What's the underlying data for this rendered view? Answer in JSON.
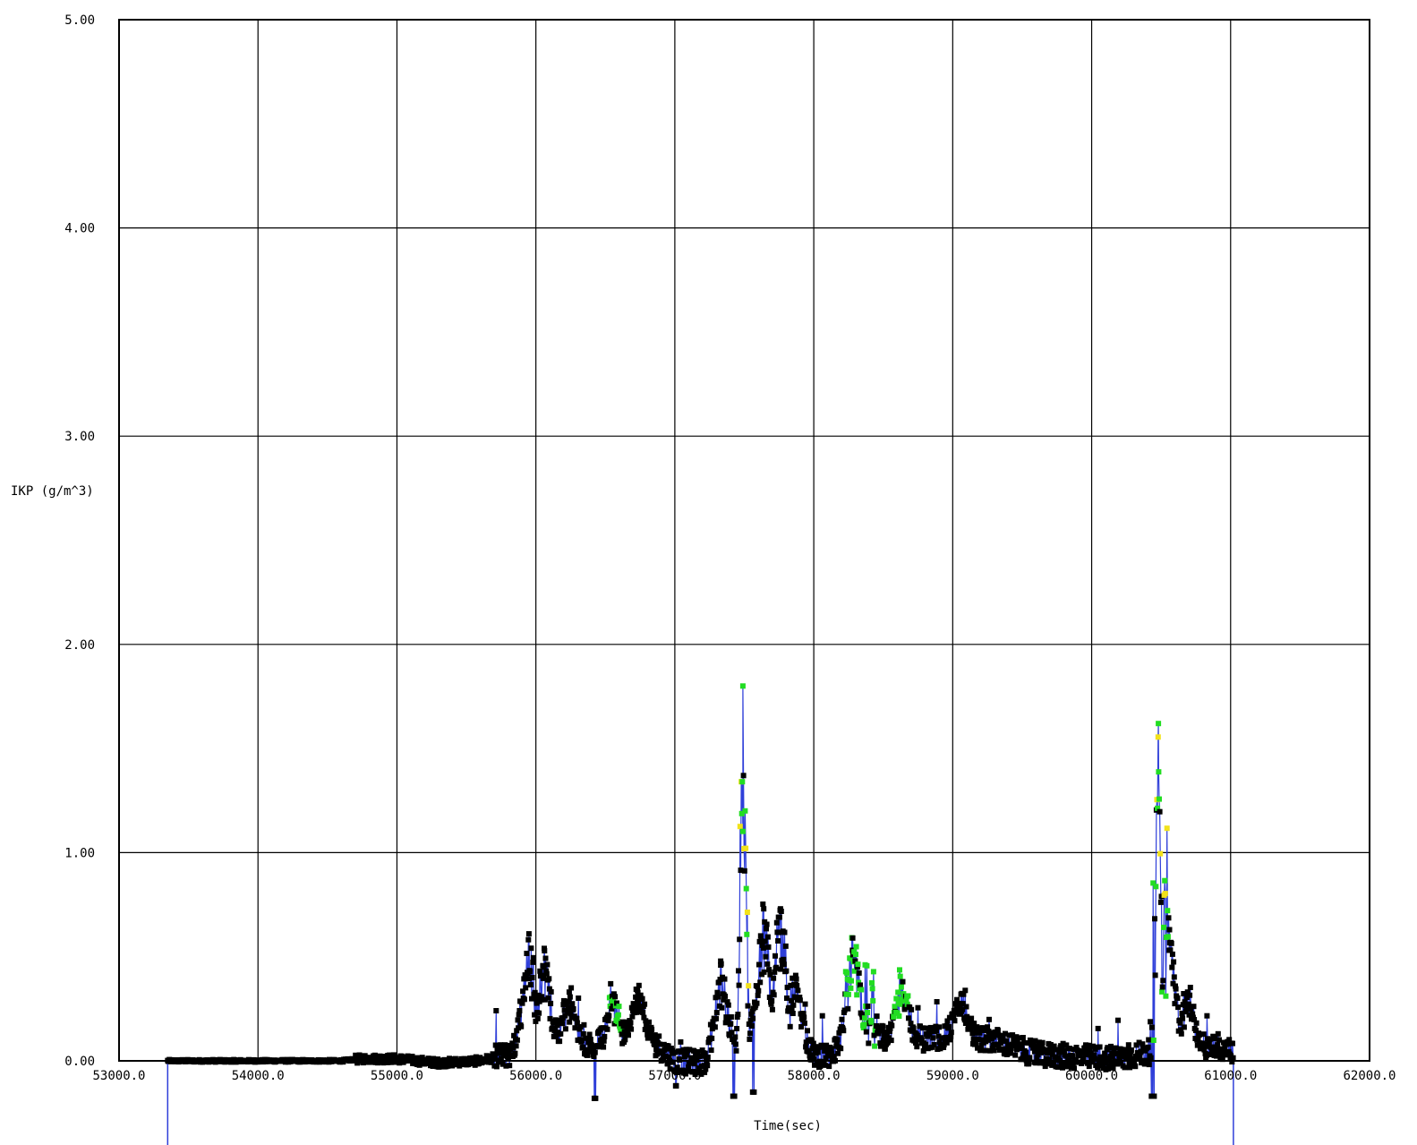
{
  "chart_data": {
    "type": "scatter",
    "title": "",
    "xlabel": "Time(sec)",
    "ylabel": "IKP (g/m^3)",
    "xlim": [
      53000,
      62000
    ],
    "ylim": [
      0,
      5
    ],
    "x_ticks": [
      53000,
      54000,
      55000,
      56000,
      57000,
      58000,
      59000,
      60000,
      61000,
      62000
    ],
    "x_tick_labels": [
      "53000.0",
      "54000.0",
      "55000.0",
      "56000.0",
      "57000.0",
      "58000.0",
      "59000.0",
      "60000.0",
      "61000.0",
      "62000.0"
    ],
    "y_ticks": [
      0,
      1,
      2,
      3,
      4,
      5
    ],
    "y_tick_labels": [
      "0.00",
      "1.00",
      "2.00",
      "3.00",
      "4.00",
      "5.00"
    ],
    "grid": true,
    "line_color": "#2f3fd9",
    "marker_colors": {
      "normal": "#000000",
      "flag_green": "#22dd22",
      "flag_yellow": "#f2e21a"
    },
    "data_start": 53350,
    "data_end": 61020,
    "baseline": [
      [
        53350,
        0.0
      ],
      [
        53700,
        0.0
      ],
      [
        54000,
        0.0
      ],
      [
        54300,
        0.0
      ],
      [
        54600,
        0.0
      ],
      [
        54750,
        0.01
      ],
      [
        55000,
        0.01
      ],
      [
        55300,
        -0.01
      ],
      [
        55600,
        0.0
      ],
      [
        55800,
        0.03
      ],
      [
        56200,
        0.08
      ],
      [
        56500,
        0.07
      ],
      [
        56800,
        0.12
      ],
      [
        57000,
        0.0
      ],
      [
        57200,
        -0.01
      ],
      [
        57600,
        0.1
      ],
      [
        57900,
        0.05
      ],
      [
        58100,
        0.02
      ],
      [
        58400,
        0.12
      ],
      [
        58700,
        0.1
      ],
      [
        59000,
        0.12
      ],
      [
        59300,
        0.1
      ],
      [
        59600,
        0.03
      ],
      [
        59900,
        0.02
      ],
      [
        60200,
        0.01
      ],
      [
        60400,
        0.04
      ],
      [
        60700,
        0.08
      ],
      [
        61020,
        0.05
      ]
    ],
    "peaks": [
      {
        "x": 55950,
        "y": 0.61
      },
      {
        "x": 56060,
        "y": 0.54
      },
      {
        "x": 56240,
        "y": 0.33
      },
      {
        "x": 56550,
        "y": 0.31
      },
      {
        "x": 56730,
        "y": 0.34
      },
      {
        "x": 57330,
        "y": 0.46
      },
      {
        "x": 57490,
        "y": 1.8
      },
      {
        "x": 57640,
        "y": 0.73
      },
      {
        "x": 57760,
        "y": 0.73
      },
      {
        "x": 57870,
        "y": 0.41
      },
      {
        "x": 58280,
        "y": 0.59
      },
      {
        "x": 58640,
        "y": 0.38
      },
      {
        "x": 59060,
        "y": 0.32
      },
      {
        "x": 60480,
        "y": 1.62
      },
      {
        "x": 60560,
        "y": 0.63
      },
      {
        "x": 60690,
        "y": 0.33
      }
    ],
    "dips": [
      {
        "x": 56420,
        "y": -0.18
      },
      {
        "x": 57010,
        "y": -0.12
      },
      {
        "x": 57420,
        "y": -0.17
      },
      {
        "x": 57560,
        "y": -0.15
      },
      {
        "x": 60440,
        "y": -0.17
      }
    ],
    "green_regions": [
      {
        "x0": 58220,
        "x1": 58450,
        "ymax": 0.45
      },
      {
        "x0": 57460,
        "x1": 57530,
        "ymax": 1.8
      },
      {
        "x0": 60440,
        "x1": 60550,
        "ymax": 1.6
      },
      {
        "x0": 56530,
        "x1": 56620,
        "ymax": 0.3
      },
      {
        "x0": 58570,
        "x1": 58680,
        "ymax": 0.3
      }
    ]
  }
}
